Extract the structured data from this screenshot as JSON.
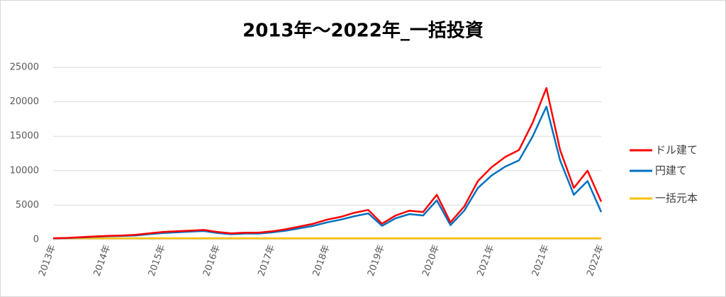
{
  "chart_data": {
    "type": "line",
    "title": "2013年～2022年_一括投資",
    "categories": [
      "2013年",
      null,
      null,
      null,
      "2014年",
      null,
      null,
      null,
      "2015年",
      null,
      null,
      null,
      "2016年",
      null,
      null,
      null,
      "2017年",
      null,
      null,
      null,
      "2018年",
      null,
      null,
      null,
      "2019年",
      null,
      null,
      null,
      "2020年",
      null,
      null,
      null,
      "2021年",
      null,
      null,
      null,
      "2021年",
      null,
      null,
      null,
      "2022年"
    ],
    "series": [
      {
        "name": "ドル建て",
        "color": "#ff0000",
        "values": [
          200,
          250,
          350,
          450,
          550,
          600,
          700,
          900,
          1100,
          1200,
          1300,
          1400,
          1100,
          900,
          1000,
          1000,
          1200,
          1500,
          1900,
          2300,
          2900,
          3300,
          3900,
          4300,
          2300,
          3500,
          4200,
          4000,
          6500,
          2500,
          4800,
          8500,
          10500,
          12000,
          13000,
          17000,
          22000,
          13000,
          7500,
          10000,
          5500
        ]
      },
      {
        "name": "円建て",
        "color": "#0070c0",
        "values": [
          180,
          220,
          310,
          400,
          480,
          520,
          600,
          780,
          950,
          1050,
          1150,
          1250,
          950,
          780,
          870,
          870,
          1050,
          1300,
          1650,
          2000,
          2500,
          2900,
          3400,
          3800,
          2000,
          3100,
          3700,
          3500,
          5700,
          2100,
          4200,
          7500,
          9300,
          10600,
          11500,
          15000,
          19300,
          11500,
          6500,
          8500,
          4000
        ]
      },
      {
        "name": "一括元本",
        "color": "#ffc000",
        "values": [
          200,
          200,
          200,
          200,
          200,
          200,
          200,
          200,
          200,
          200,
          200,
          200,
          200,
          200,
          200,
          200,
          200,
          200,
          200,
          200,
          200,
          200,
          200,
          200,
          200,
          200,
          200,
          200,
          200,
          200,
          200,
          200,
          200,
          200,
          200,
          200,
          200,
          200,
          200,
          200,
          200
        ]
      }
    ],
    "ylim": [
      0,
      25000
    ],
    "yticks": [
      0,
      5000,
      10000,
      15000,
      20000,
      25000
    ],
    "grid": true,
    "legend": "right"
  }
}
